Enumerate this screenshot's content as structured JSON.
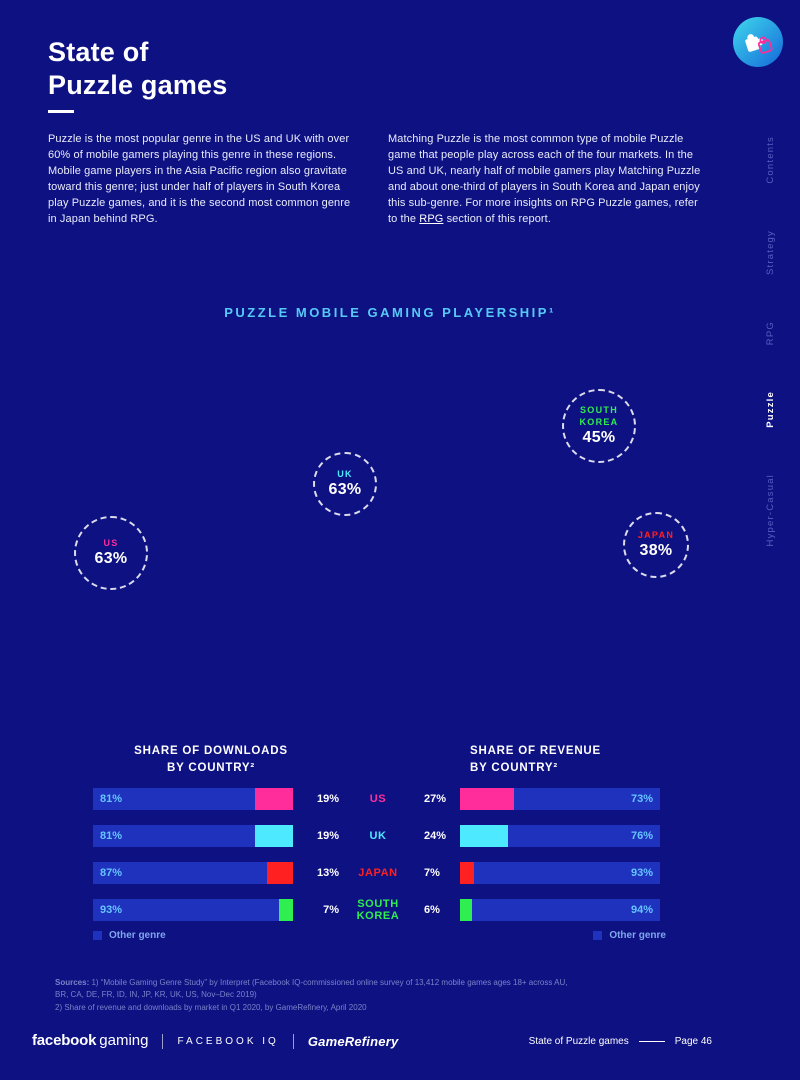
{
  "header": {
    "title_line1": "State of",
    "title_line2": "Puzzle games"
  },
  "side_nav": {
    "items": [
      {
        "label": "Contents",
        "active": false
      },
      {
        "label": "Strategy",
        "active": false
      },
      {
        "label": "RPG",
        "active": false
      },
      {
        "label": "Puzzle",
        "active": true
      },
      {
        "label": "Hyper-Casual",
        "active": false
      }
    ]
  },
  "intro": {
    "left": "Puzzle is the most popular genre in the US and UK with over 60% of mobile gamers playing this genre in these regions. Mobile game players in the Asia Pacific region also gravitate toward this genre; just under half of players in South Korea play Puzzle games, and it is the second most common genre in Japan behind RPG.",
    "right_before": "Matching Puzzle is the most common type of mobile Puzzle game that people play across each of the four markets. In the US and UK, nearly half of mobile gamers play Matching Puzzle and about one-third of players in South Korea and Japan enjoy this sub-genre. For more insights on RPG Puzzle games, refer to the ",
    "link": "RPG",
    "right_after": " section of this report."
  },
  "colors": {
    "background": "#0E1182",
    "bar_blue": "#1E32BE",
    "in_bar_text": "#66C4FF",
    "heading_cyan": "#55CAF7",
    "us_pink": "#FF2D9B",
    "uk_cyan": "#4DE9FF",
    "japan_red": "#FF2121",
    "korea_green": "#2EEF4F"
  },
  "country_colors": {
    "US": "#FF2D9B",
    "UK": "#4DE9FF",
    "JAPAN": "#FF2121",
    "SOUTH KOREA": "#2EEF4F"
  },
  "chart_data": [
    {
      "type": "bubble",
      "title": "PUZZLE MOBILE GAMING PLAYERSHIP¹",
      "unit": "% of mobile gamers playing Puzzle",
      "points": [
        {
          "country": "US",
          "value": "63%",
          "color": "#FF2D9B"
        },
        {
          "country": "UK",
          "value": "63%",
          "color": "#4DE9FF"
        },
        {
          "country": "SOUTH KOREA",
          "value": "45%",
          "color": "#2EEF4F"
        },
        {
          "country": "JAPAN",
          "value": "38%",
          "color": "#FF2121"
        }
      ]
    },
    {
      "type": "bar",
      "orientation": "horizontal-stacked-100",
      "title_line1": "SHARE OF DOWNLOADS",
      "title_line2": "BY COUNTRY²",
      "categories": [
        "US",
        "UK",
        "JAPAN",
        "SOUTH KOREA"
      ],
      "series": [
        {
          "name": "Other genre",
          "values": [
            81,
            81,
            87,
            93
          ]
        },
        {
          "name": "Puzzle",
          "values": [
            19,
            19,
            13,
            7
          ]
        }
      ],
      "legend": "Other genre",
      "unit": "%"
    },
    {
      "type": "bar",
      "orientation": "horizontal-stacked-100",
      "title_line1": "SHARE OF REVENUE",
      "title_line2": "BY COUNTRY²",
      "categories": [
        "US",
        "UK",
        "JAPAN",
        "SOUTH KOREA"
      ],
      "series": [
        {
          "name": "Puzzle",
          "values": [
            27,
            24,
            7,
            6
          ]
        },
        {
          "name": "Other genre",
          "values": [
            73,
            76,
            93,
            94
          ]
        }
      ],
      "legend": "Other genre",
      "unit": "%"
    }
  ],
  "sources": {
    "label": "Sources:",
    "line1": "1) “Mobile Gaming Genre Study” by Interpret (Facebook IQ-commissioned online survey of 13,412 mobile games ages 18+ across AU, BR, CA, DE, FR, ID, IN, JP, KR, UK, US, Nov–Dec 2019)",
    "line2": "2) Share of revenue and downloads by market in Q1 2020, by GameRefinery, April 2020"
  },
  "footer": {
    "brand_facebook": "facebook",
    "brand_gaming": "gaming",
    "brand_iq": "FACEBOOK IQ",
    "brand_gamerefinery": "GameRefinery",
    "page_label": "State of Puzzle games",
    "page_number": "Page 46"
  }
}
